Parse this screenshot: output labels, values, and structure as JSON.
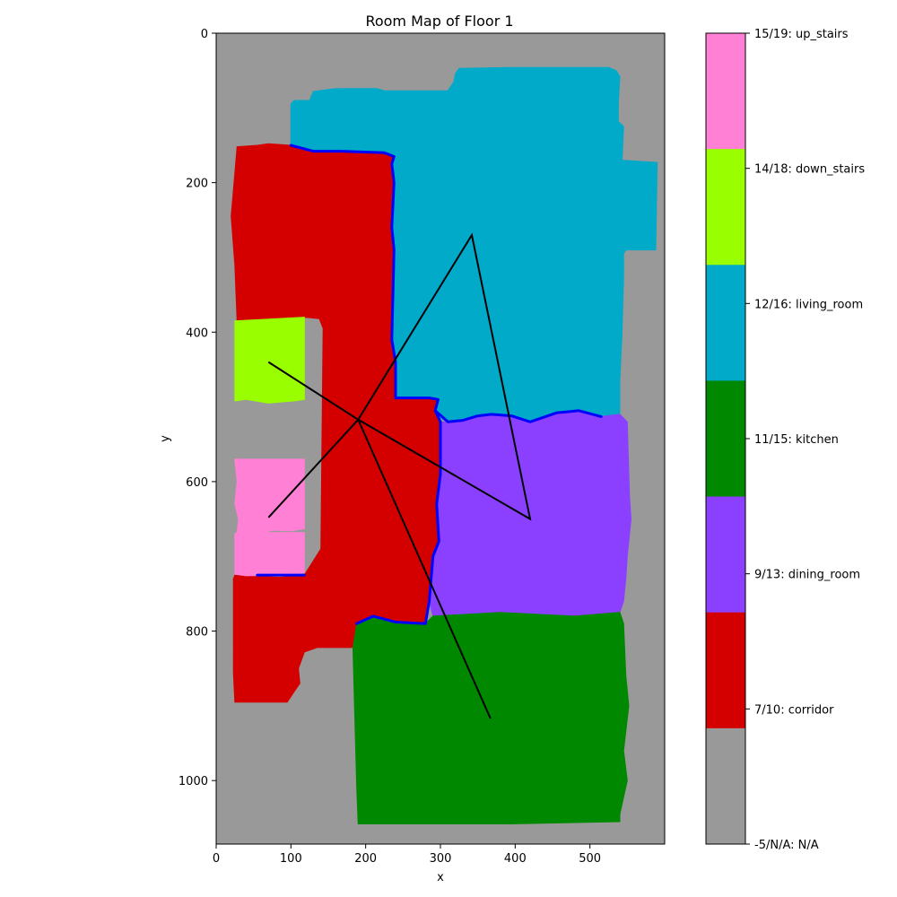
{
  "chart_data": {
    "type": "heatmap",
    "title": "Room Map of Floor 1",
    "xlabel": "x",
    "ylabel": "y",
    "xlim": [
      0,
      600
    ],
    "ylim": [
      1085,
      0
    ],
    "x_ticks": [
      0,
      100,
      200,
      300,
      400,
      500
    ],
    "y_ticks": [
      0,
      200,
      400,
      600,
      800,
      1000
    ],
    "grid": false,
    "background_class": "N/A",
    "colorbar": {
      "labels": [
        {
          "text": "15/19: up_stairs",
          "class": "up_stairs",
          "color": "#ff80d4"
        },
        {
          "text": "14/18: down_stairs",
          "class": "down_stairs",
          "color": "#99ff00"
        },
        {
          "text": "12/16: living_room",
          "class": "living_room",
          "color": "#00aac8"
        },
        {
          "text": "11/15: kitchen",
          "class": "kitchen",
          "color": "#008800"
        },
        {
          "text": "9/13: dining_room",
          "class": "dining_room",
          "color": "#8c40ff"
        },
        {
          "text": "7/10: corridor",
          "class": "corridor",
          "color": "#d40000"
        },
        {
          "text": "-5/N/A: N/A",
          "class": "N/A",
          "color": "#999999"
        }
      ]
    },
    "regions": [
      {
        "class": "living_room",
        "color": "#00aac8",
        "points": [
          [
            100,
            95
          ],
          [
            104,
            90
          ],
          [
            125,
            90
          ],
          [
            130,
            78
          ],
          [
            160,
            74
          ],
          [
            215,
            74
          ],
          [
            225,
            77
          ],
          [
            310,
            77
          ],
          [
            318,
            65
          ],
          [
            320,
            54
          ],
          [
            325,
            47
          ],
          [
            390,
            46
          ],
          [
            525,
            46
          ],
          [
            535,
            50
          ],
          [
            540,
            58
          ],
          [
            538,
            95
          ],
          [
            538,
            118
          ],
          [
            545,
            125
          ],
          [
            543,
            170
          ],
          [
            590,
            173
          ],
          [
            588,
            290
          ],
          [
            548,
            290
          ],
          [
            545,
            295
          ],
          [
            545,
            325
          ],
          [
            543,
            400
          ],
          [
            540,
            465
          ],
          [
            540,
            510
          ],
          [
            515,
            513
          ],
          [
            485,
            505
          ],
          [
            455,
            508
          ],
          [
            420,
            520
          ],
          [
            395,
            512
          ],
          [
            368,
            510
          ],
          [
            350,
            512
          ],
          [
            330,
            518
          ],
          [
            310,
            520
          ],
          [
            298,
            514
          ],
          [
            293,
            505
          ],
          [
            297,
            490
          ],
          [
            285,
            488
          ],
          [
            240,
            488
          ],
          [
            240,
            440
          ],
          [
            235,
            410
          ],
          [
            238,
            290
          ],
          [
            235,
            260
          ],
          [
            238,
            200
          ],
          [
            235,
            175
          ],
          [
            238,
            165
          ],
          [
            225,
            160
          ],
          [
            165,
            158
          ],
          [
            130,
            158
          ],
          [
            100,
            152
          ]
        ]
      },
      {
        "class": "corridor",
        "color": "#d40000",
        "points": [
          [
            28,
            152
          ],
          [
            55,
            150
          ],
          [
            70,
            148
          ],
          [
            100,
            150
          ],
          [
            130,
            158
          ],
          [
            165,
            158
          ],
          [
            225,
            160
          ],
          [
            238,
            165
          ],
          [
            235,
            175
          ],
          [
            238,
            200
          ],
          [
            235,
            260
          ],
          [
            238,
            290
          ],
          [
            235,
            410
          ],
          [
            240,
            440
          ],
          [
            240,
            488
          ],
          [
            285,
            488
          ],
          [
            297,
            490
          ],
          [
            293,
            505
          ],
          [
            300,
            520
          ],
          [
            300,
            590
          ],
          [
            295,
            630
          ],
          [
            298,
            680
          ],
          [
            290,
            700
          ],
          [
            285,
            760
          ],
          [
            280,
            790
          ],
          [
            240,
            788
          ],
          [
            210,
            780
          ],
          [
            188,
            790
          ],
          [
            184,
            822
          ],
          [
            135,
            822
          ],
          [
            118,
            828
          ],
          [
            110,
            850
          ],
          [
            112,
            870
          ],
          [
            105,
            880
          ],
          [
            95,
            895
          ],
          [
            25,
            895
          ],
          [
            23,
            855
          ],
          [
            23,
            730
          ],
          [
            25,
            725
          ],
          [
            85,
            728
          ],
          [
            118,
            725
          ],
          [
            140,
            690
          ],
          [
            143,
            395
          ],
          [
            138,
            382
          ],
          [
            118,
            380
          ],
          [
            28,
            385
          ],
          [
            25,
            310
          ],
          [
            20,
            245
          ]
        ]
      },
      {
        "class": "dining_room",
        "color": "#8c40ff",
        "points": [
          [
            300,
            520
          ],
          [
            310,
            520
          ],
          [
            330,
            518
          ],
          [
            350,
            512
          ],
          [
            368,
            510
          ],
          [
            395,
            512
          ],
          [
            420,
            520
          ],
          [
            455,
            508
          ],
          [
            485,
            505
          ],
          [
            515,
            513
          ],
          [
            540,
            510
          ],
          [
            550,
            520
          ],
          [
            553,
            620
          ],
          [
            555,
            650
          ],
          [
            550,
            700
          ],
          [
            548,
            730
          ],
          [
            545,
            760
          ],
          [
            540,
            775
          ],
          [
            480,
            780
          ],
          [
            440,
            778
          ],
          [
            380,
            775
          ],
          [
            290,
            780
          ],
          [
            285,
            760
          ],
          [
            290,
            700
          ],
          [
            298,
            680
          ],
          [
            295,
            630
          ],
          [
            300,
            590
          ]
        ]
      },
      {
        "class": "kitchen",
        "color": "#008800",
        "points": [
          [
            188,
            790
          ],
          [
            210,
            780
          ],
          [
            240,
            788
          ],
          [
            280,
            790
          ],
          [
            290,
            780
          ],
          [
            380,
            775
          ],
          [
            440,
            778
          ],
          [
            480,
            780
          ],
          [
            540,
            775
          ],
          [
            545,
            790
          ],
          [
            548,
            860
          ],
          [
            552,
            900
          ],
          [
            545,
            960
          ],
          [
            550,
            1000
          ],
          [
            540,
            1045
          ],
          [
            540,
            1055
          ],
          [
            395,
            1058
          ],
          [
            190,
            1058
          ],
          [
            188,
            1010
          ],
          [
            185,
            900
          ],
          [
            183,
            822
          ]
        ]
      },
      {
        "class": "down_stairs",
        "color": "#99ff00",
        "points": [
          [
            25,
            385
          ],
          [
            118,
            380
          ],
          [
            118,
            490
          ],
          [
            105,
            492
          ],
          [
            70,
            495
          ],
          [
            40,
            490
          ],
          [
            25,
            492
          ]
        ]
      },
      {
        "class": "up_stairs",
        "color": "#ff80d4",
        "points": [
          [
            25,
            570
          ],
          [
            118,
            570
          ],
          [
            118,
            663
          ],
          [
            100,
            666
          ],
          [
            75,
            665
          ],
          [
            65,
            668
          ],
          [
            55,
            668
          ],
          [
            40,
            668
          ],
          [
            28,
            668
          ],
          [
            30,
            650
          ],
          [
            25,
            630
          ],
          [
            28,
            600
          ]
        ]
      },
      {
        "class": "up_stairs",
        "color": "#ff80d4",
        "points": [
          [
            25,
            670
          ],
          [
            28,
            668
          ],
          [
            65,
            668
          ],
          [
            118,
            668
          ],
          [
            118,
            722
          ],
          [
            90,
            725
          ],
          [
            40,
            726
          ],
          [
            25,
            724
          ]
        ]
      }
    ],
    "boundaries": [
      {
        "color": "#0000ff",
        "points": [
          [
            100,
            150
          ],
          [
            130,
            158
          ],
          [
            165,
            158
          ],
          [
            225,
            160
          ],
          [
            238,
            165
          ],
          [
            235,
            175
          ],
          [
            238,
            200
          ],
          [
            235,
            260
          ],
          [
            238,
            290
          ],
          [
            235,
            410
          ],
          [
            240,
            440
          ],
          [
            240,
            488
          ],
          [
            285,
            488
          ],
          [
            297,
            490
          ],
          [
            293,
            505
          ],
          [
            300,
            520
          ],
          [
            300,
            590
          ],
          [
            295,
            630
          ],
          [
            298,
            680
          ],
          [
            290,
            700
          ],
          [
            285,
            760
          ],
          [
            280,
            790
          ],
          [
            240,
            788
          ],
          [
            210,
            780
          ],
          [
            188,
            790
          ]
        ]
      },
      {
        "color": "#0000ff",
        "points": [
          [
            293,
            505
          ],
          [
            310,
            520
          ],
          [
            330,
            518
          ],
          [
            350,
            512
          ],
          [
            368,
            510
          ],
          [
            395,
            512
          ],
          [
            420,
            520
          ],
          [
            455,
            508
          ],
          [
            485,
            505
          ],
          [
            515,
            513
          ]
        ]
      },
      {
        "color": "#0000ff",
        "points": [
          [
            55,
            725
          ],
          [
            118,
            725
          ]
        ]
      }
    ],
    "series": [
      {
        "color": "#000000",
        "x": [
          70,
          190,
          420,
          342,
          190,
          367
        ],
        "y": [
          440,
          517,
          650,
          270,
          517,
          917
        ]
      },
      {
        "color": "#000000",
        "x": [
          190,
          70
        ],
        "y": [
          517,
          648
        ]
      }
    ]
  }
}
